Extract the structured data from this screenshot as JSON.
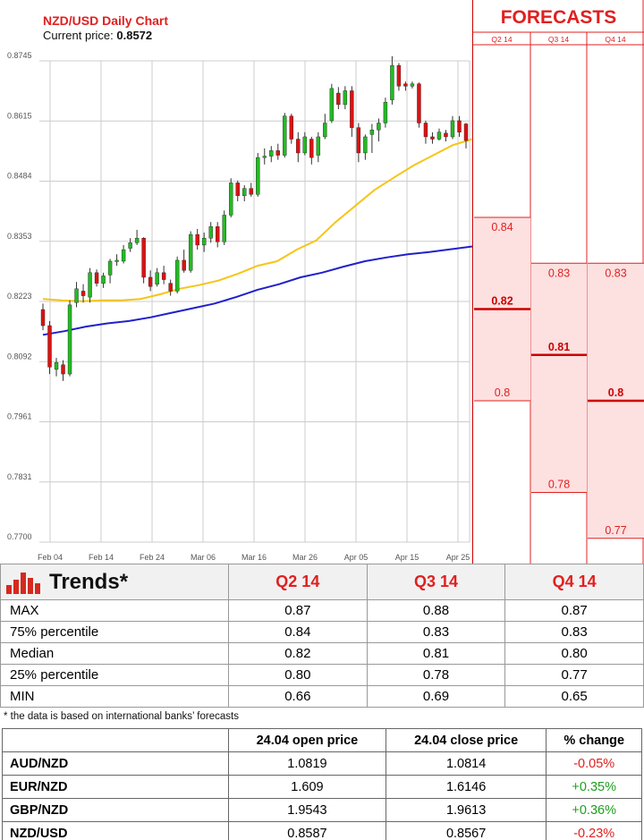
{
  "chart": {
    "title": "NZD/USD Daily Chart",
    "price_label": "Current price: ",
    "price_value": "0.8572"
  },
  "chart_data": [
    {
      "type": "candlestick",
      "title": "NZD/USD Daily Chart",
      "y_ticks": [
        "0.8745",
        "0.8615",
        "0.8484",
        "0.8353",
        "0.8223",
        "0.8092",
        "0.7961",
        "0.7831",
        "0.7700"
      ],
      "x_ticks": [
        "Feb 04",
        "Feb 14",
        "Feb 24",
        "Mar 06",
        "Mar 16",
        "Mar 26",
        "Apr 05",
        "Apr 15",
        "Apr 25"
      ],
      "ylim": [
        0.77,
        0.8745
      ],
      "grid": true,
      "candles": [
        {
          "o": 0.8205,
          "h": 0.8218,
          "l": 0.816,
          "c": 0.817
        },
        {
          "o": 0.817,
          "h": 0.818,
          "l": 0.8065,
          "c": 0.808
        },
        {
          "o": 0.8075,
          "h": 0.81,
          "l": 0.806,
          "c": 0.809
        },
        {
          "o": 0.8085,
          "h": 0.8095,
          "l": 0.805,
          "c": 0.8065
        },
        {
          "o": 0.8065,
          "h": 0.8225,
          "l": 0.806,
          "c": 0.8215
        },
        {
          "o": 0.822,
          "h": 0.8265,
          "l": 0.821,
          "c": 0.825
        },
        {
          "o": 0.8245,
          "h": 0.826,
          "l": 0.822,
          "c": 0.8235
        },
        {
          "o": 0.8232,
          "h": 0.8295,
          "l": 0.822,
          "c": 0.8285
        },
        {
          "o": 0.8285,
          "h": 0.8292,
          "l": 0.8255,
          "c": 0.8262
        },
        {
          "o": 0.8262,
          "h": 0.8285,
          "l": 0.8252,
          "c": 0.8278
        },
        {
          "o": 0.828,
          "h": 0.8315,
          "l": 0.8262,
          "c": 0.831
        },
        {
          "o": 0.831,
          "h": 0.8325,
          "l": 0.83,
          "c": 0.8312
        },
        {
          "o": 0.831,
          "h": 0.8345,
          "l": 0.8305,
          "c": 0.8335
        },
        {
          "o": 0.8338,
          "h": 0.836,
          "l": 0.833,
          "c": 0.835
        },
        {
          "o": 0.835,
          "h": 0.8378,
          "l": 0.8345,
          "c": 0.836
        },
        {
          "o": 0.836,
          "h": 0.8362,
          "l": 0.8262,
          "c": 0.8275
        },
        {
          "o": 0.8275,
          "h": 0.829,
          "l": 0.8245,
          "c": 0.8255
        },
        {
          "o": 0.826,
          "h": 0.8295,
          "l": 0.8255,
          "c": 0.8285
        },
        {
          "o": 0.8285,
          "h": 0.83,
          "l": 0.826,
          "c": 0.827
        },
        {
          "o": 0.8262,
          "h": 0.827,
          "l": 0.8235,
          "c": 0.8245
        },
        {
          "o": 0.8245,
          "h": 0.832,
          "l": 0.824,
          "c": 0.8312
        },
        {
          "o": 0.8312,
          "h": 0.8335,
          "l": 0.8285,
          "c": 0.829
        },
        {
          "o": 0.829,
          "h": 0.8375,
          "l": 0.8285,
          "c": 0.8368
        },
        {
          "o": 0.8368,
          "h": 0.838,
          "l": 0.8335,
          "c": 0.8345
        },
        {
          "o": 0.8345,
          "h": 0.8372,
          "l": 0.833,
          "c": 0.836
        },
        {
          "o": 0.836,
          "h": 0.8395,
          "l": 0.835,
          "c": 0.8385
        },
        {
          "o": 0.8385,
          "h": 0.8395,
          "l": 0.834,
          "c": 0.8352
        },
        {
          "o": 0.8352,
          "h": 0.842,
          "l": 0.8345,
          "c": 0.841
        },
        {
          "o": 0.841,
          "h": 0.849,
          "l": 0.8405,
          "c": 0.848
        },
        {
          "o": 0.848,
          "h": 0.8485,
          "l": 0.844,
          "c": 0.8452
        },
        {
          "o": 0.8452,
          "h": 0.8475,
          "l": 0.844,
          "c": 0.8468
        },
        {
          "o": 0.8468,
          "h": 0.848,
          "l": 0.845,
          "c": 0.8455
        },
        {
          "o": 0.8455,
          "h": 0.8545,
          "l": 0.845,
          "c": 0.8535
        },
        {
          "o": 0.8535,
          "h": 0.8555,
          "l": 0.852,
          "c": 0.8538
        },
        {
          "o": 0.8538,
          "h": 0.856,
          "l": 0.8525,
          "c": 0.855
        },
        {
          "o": 0.855,
          "h": 0.8565,
          "l": 0.853,
          "c": 0.854
        },
        {
          "o": 0.854,
          "h": 0.8632,
          "l": 0.8535,
          "c": 0.8625
        },
        {
          "o": 0.8625,
          "h": 0.863,
          "l": 0.8565,
          "c": 0.8575
        },
        {
          "o": 0.8575,
          "h": 0.859,
          "l": 0.8525,
          "c": 0.8545
        },
        {
          "o": 0.8545,
          "h": 0.859,
          "l": 0.854,
          "c": 0.858
        },
        {
          "o": 0.8575,
          "h": 0.858,
          "l": 0.852,
          "c": 0.8535
        },
        {
          "o": 0.854,
          "h": 0.859,
          "l": 0.8525,
          "c": 0.858
        },
        {
          "o": 0.858,
          "h": 0.863,
          "l": 0.8575,
          "c": 0.861
        },
        {
          "o": 0.8615,
          "h": 0.8695,
          "l": 0.861,
          "c": 0.8685
        },
        {
          "o": 0.8675,
          "h": 0.8688,
          "l": 0.864,
          "c": 0.865
        },
        {
          "o": 0.865,
          "h": 0.869,
          "l": 0.864,
          "c": 0.868
        },
        {
          "o": 0.868,
          "h": 0.869,
          "l": 0.858,
          "c": 0.86
        },
        {
          "o": 0.86,
          "h": 0.861,
          "l": 0.8525,
          "c": 0.8545
        },
        {
          "o": 0.8545,
          "h": 0.8585,
          "l": 0.853,
          "c": 0.858
        },
        {
          "o": 0.8585,
          "h": 0.8608,
          "l": 0.8545,
          "c": 0.8595
        },
        {
          "o": 0.8595,
          "h": 0.862,
          "l": 0.857,
          "c": 0.861
        },
        {
          "o": 0.861,
          "h": 0.8665,
          "l": 0.86,
          "c": 0.8655
        },
        {
          "o": 0.866,
          "h": 0.8755,
          "l": 0.865,
          "c": 0.8735
        },
        {
          "o": 0.8735,
          "h": 0.874,
          "l": 0.868,
          "c": 0.869
        },
        {
          "o": 0.8695,
          "h": 0.87,
          "l": 0.868,
          "c": 0.869
        },
        {
          "o": 0.869,
          "h": 0.87,
          "l": 0.8685,
          "c": 0.8695
        },
        {
          "o": 0.8695,
          "h": 0.8698,
          "l": 0.86,
          "c": 0.861
        },
        {
          "o": 0.861,
          "h": 0.8615,
          "l": 0.8565,
          "c": 0.858
        },
        {
          "o": 0.858,
          "h": 0.859,
          "l": 0.8565,
          "c": 0.8575
        },
        {
          "o": 0.8575,
          "h": 0.8598,
          "l": 0.8572,
          "c": 0.859
        },
        {
          "o": 0.8588,
          "h": 0.8595,
          "l": 0.857,
          "c": 0.858
        },
        {
          "o": 0.858,
          "h": 0.8625,
          "l": 0.8575,
          "c": 0.8615
        },
        {
          "o": 0.8615,
          "h": 0.8625,
          "l": 0.858,
          "c": 0.859
        },
        {
          "o": 0.8608,
          "h": 0.861,
          "l": 0.8555,
          "c": 0.8572
        }
      ],
      "series": [
        {
          "color": "#f5c518",
          "values": [
            0.8228,
            0.8225,
            0.8223,
            0.8225,
            0.8225,
            0.8228,
            0.8238,
            0.825,
            0.8258,
            0.8268,
            0.8283,
            0.83,
            0.831,
            0.8335,
            0.8355,
            0.8395,
            0.843,
            0.8465,
            0.8492,
            0.8518,
            0.854,
            0.8562,
            0.8575
          ]
        },
        {
          "color": "#2020cc",
          "values": [
            0.815,
            0.8158,
            0.8168,
            0.8175,
            0.818,
            0.8188,
            0.8198,
            0.8208,
            0.8218,
            0.8232,
            0.8248,
            0.826,
            0.8275,
            0.8285,
            0.8298,
            0.831,
            0.8318,
            0.8325,
            0.833,
            0.8336,
            0.8342
          ]
        }
      ]
    },
    {
      "type": "range",
      "title": "FORECASTS",
      "categories": [
        "Q2 14",
        "Q3 14",
        "Q4 14"
      ],
      "series": [
        {
          "name": "75% percentile",
          "values": [
            0.84,
            0.83,
            0.83
          ]
        },
        {
          "name": "Median",
          "values": [
            0.82,
            0.81,
            0.8
          ]
        },
        {
          "name": "25% percentile",
          "values": [
            0.8,
            0.78,
            0.77
          ]
        }
      ]
    }
  ],
  "forecasts": {
    "title": "FORECASTS",
    "quarters": [
      "Q2 14",
      "Q3 14",
      "Q4 14"
    ],
    "cols": [
      {
        "p75": "0.84",
        "median": "0.82",
        "p25": "0.8"
      },
      {
        "p75": "0.83",
        "median": "0.81",
        "p25": "0.78"
      },
      {
        "p75": "0.83",
        "median": "0.8",
        "p25": "0.77"
      }
    ]
  },
  "trends": {
    "title": "Trends*",
    "headers": [
      "Q2 14",
      "Q3 14",
      "Q4 14"
    ],
    "rows": [
      {
        "label": "MAX",
        "values": [
          "0.87",
          "0.88",
          "0.87"
        ]
      },
      {
        "label": "75% percentile",
        "values": [
          "0.84",
          "0.83",
          "0.83"
        ]
      },
      {
        "label": "Median",
        "values": [
          "0.82",
          "0.81",
          "0.80"
        ]
      },
      {
        "label": "25% percentile",
        "values": [
          "0.80",
          "0.78",
          "0.77"
        ]
      },
      {
        "label": "MIN",
        "values": [
          "0.66",
          "0.69",
          "0.65"
        ]
      }
    ],
    "note": "* the data is based on international banks’ forecasts"
  },
  "prices": {
    "headers": [
      "24.04 open price",
      "24.04 close price",
      "% change"
    ],
    "rows": [
      {
        "pair": "AUD/NZD",
        "open": "1.0819",
        "close": "1.0814",
        "change": "-0.05%",
        "dir": "neg"
      },
      {
        "pair": "EUR/NZD",
        "open": "1.609",
        "close": "1.6146",
        "change": "+0.35%",
        "dir": "pos"
      },
      {
        "pair": "GBP/NZD",
        "open": "1.9543",
        "close": "1.9613",
        "change": "+0.36%",
        "dir": "pos"
      },
      {
        "pair": "NZD/USD",
        "open": "0.8587",
        "close": "0.8567",
        "change": "-0.23%",
        "dir": "neg"
      }
    ]
  },
  "colors": {
    "accent": "#e02020",
    "bull": "#22bb22",
    "bear": "#dd1111",
    "ma_fast": "#f5c518",
    "ma_slow": "#2020cc",
    "forecast_fill": "#fde0e0"
  },
  "icons": {
    "trends_icon": "bar-chart-icon"
  }
}
